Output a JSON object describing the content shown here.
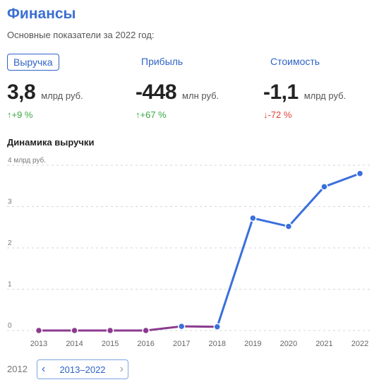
{
  "header": {
    "title": "Финансы",
    "subtitle": "Основные показатели за 2022 год:"
  },
  "metrics": [
    {
      "label": "Выручка",
      "value": "3,8",
      "unit": "млрд руб.",
      "change": "↑+9 %",
      "direction": "up",
      "active": true
    },
    {
      "label": "Прибыль",
      "value": "-448",
      "unit": "млн руб.",
      "change": "↑+67 %",
      "direction": "up",
      "active": false
    },
    {
      "label": "Стоимость",
      "value": "-1,1",
      "unit": "млрд руб.",
      "change": "↓-72 %",
      "direction": "down",
      "active": false
    }
  ],
  "chart_title": "Динамика выручки",
  "chart_data": {
    "type": "line",
    "title": "Динамика выручки",
    "x": [
      "2013",
      "2014",
      "2015",
      "2016",
      "2017",
      "2018",
      "2019",
      "2020",
      "2021",
      "2022"
    ],
    "values": [
      0,
      0,
      0,
      0,
      0.1,
      0.09,
      2.72,
      2.52,
      3.48,
      3.8
    ],
    "ylim": [
      0,
      4
    ],
    "yticks": [
      "0",
      "1",
      "2",
      "3",
      "4 млрд руб."
    ],
    "grid": true,
    "segment_colors": {
      "low": "#8b3a8f",
      "high": "#3a6fdc"
    }
  },
  "range": {
    "start_year": "2012",
    "label": "2013–2022",
    "prev_icon": "‹",
    "next_icon": "›"
  }
}
